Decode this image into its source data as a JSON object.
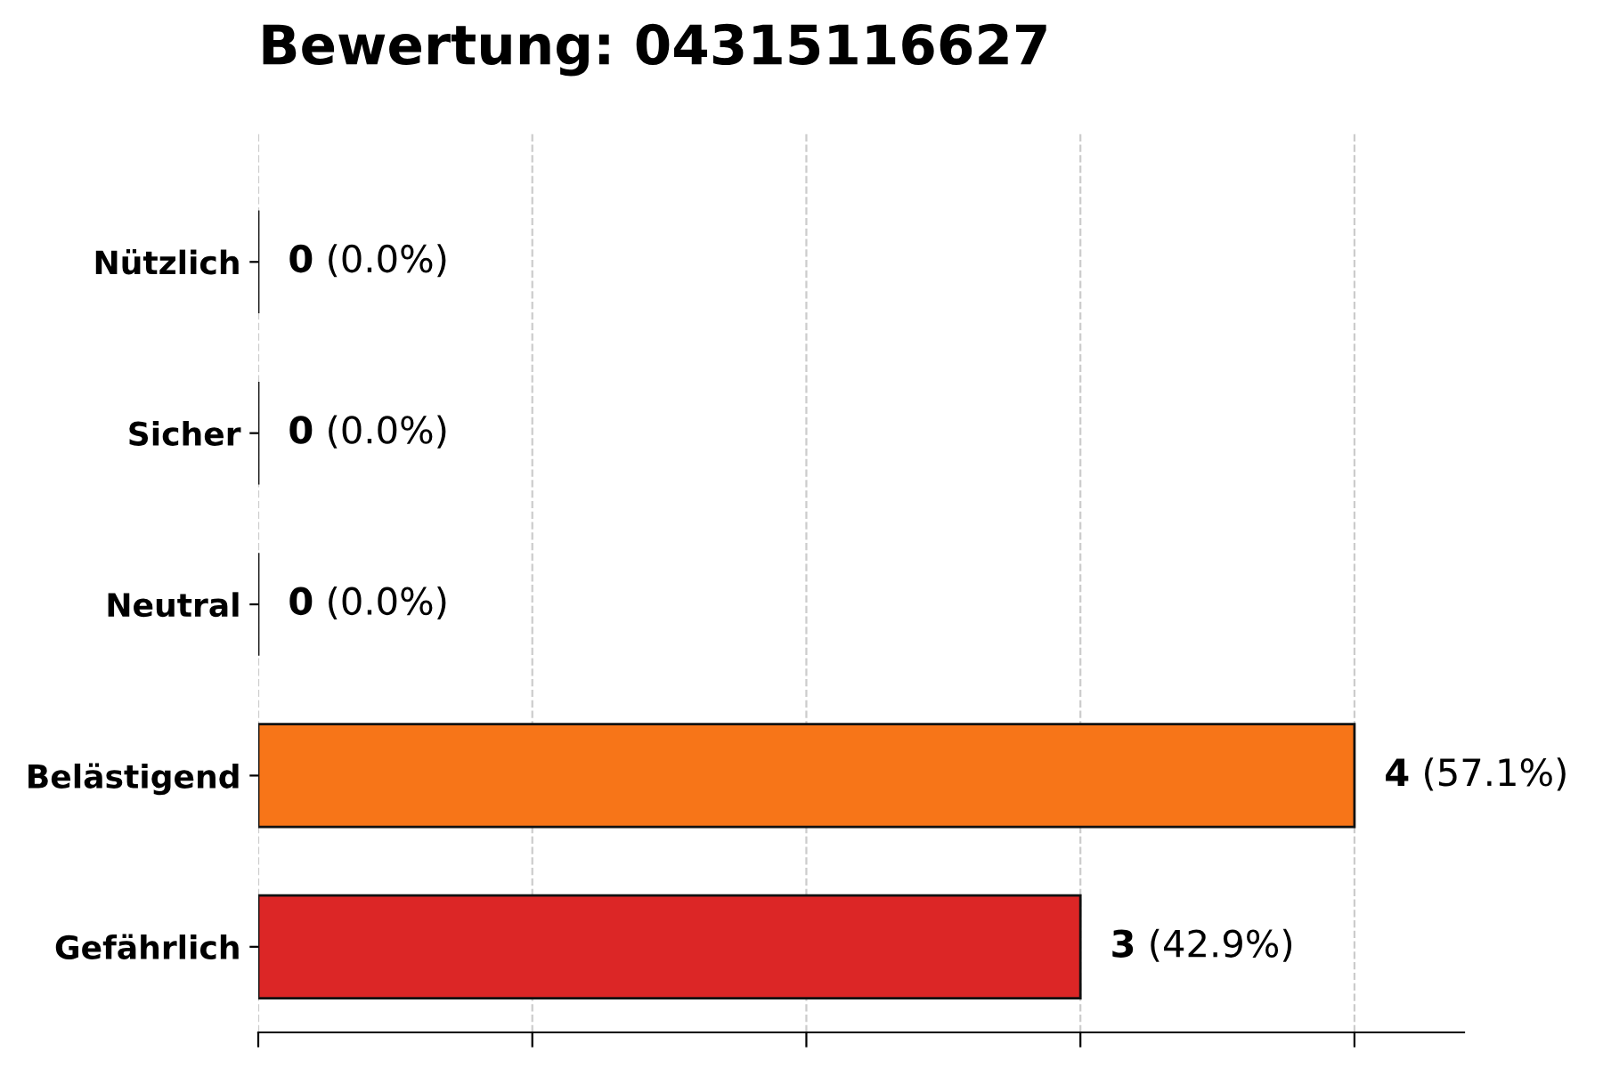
{
  "chart_data": {
    "type": "bar",
    "orientation": "horizontal",
    "title": "Bewertung: 04315116627",
    "categories": [
      "Nützlich",
      "Sicher",
      "Neutral",
      "Belästigend",
      "Gefährlich"
    ],
    "values": [
      0,
      0,
      0,
      4,
      3
    ],
    "colors": [
      "#111111",
      "#111111",
      "#111111",
      "#f77518",
      "#dc2626"
    ],
    "value_labels": [
      "0 (0.0%)",
      "0 (0.0%)",
      "0 (0.0%)",
      "4 (57.1%)",
      "3 (42.9%)"
    ],
    "xlim": [
      0,
      4.4
    ],
    "xticks": [
      {
        "value": 0,
        "label": null
      },
      {
        "value": 1,
        "label": null
      },
      {
        "value": 2,
        "label": null
      },
      {
        "value": 3,
        "label": null
      },
      {
        "value": 4,
        "label": null
      }
    ],
    "tick_labels": "y",
    "grid": "x",
    "legend": false
  }
}
